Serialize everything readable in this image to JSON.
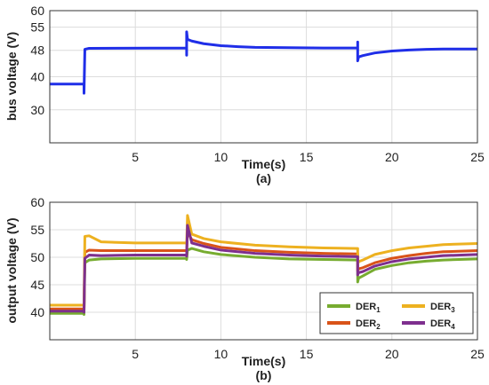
{
  "chart_data": [
    {
      "type": "line",
      "panel_label": "(a)",
      "xlabel": "Time(s)",
      "ylabel": "bus voltage (V)",
      "xlim": [
        0,
        25
      ],
      "ylim": [
        20,
        60
      ],
      "xticks": [
        5,
        10,
        15,
        20,
        25
      ],
      "yticks": [
        30,
        40,
        48,
        55,
        60
      ],
      "grid": true,
      "series": [
        {
          "color": "#1f2ee8",
          "x": [
            0,
            2.0,
            2.0,
            2.05,
            2.3,
            8.0,
            8.0,
            8.0,
            8.05,
            8.3,
            9,
            10,
            11,
            12,
            14,
            16,
            17,
            18.0,
            18.0,
            18.0,
            18.05,
            18.3,
            19,
            20,
            21,
            22,
            23,
            25
          ],
          "y": [
            37.8,
            37.8,
            35.0,
            48.3,
            48.6,
            48.7,
            46.5,
            53.6,
            51.3,
            50.8,
            50.0,
            49.4,
            49.1,
            48.9,
            48.8,
            48.7,
            48.7,
            48.7,
            50.5,
            44.8,
            46.0,
            46.4,
            47.2,
            47.8,
            48.1,
            48.3,
            48.4,
            48.4
          ]
        }
      ]
    },
    {
      "type": "line",
      "panel_label": "(b)",
      "xlabel": "Time(s)",
      "ylabel": "output voltage (V)",
      "xlim": [
        0,
        25
      ],
      "ylim": [
        35,
        60
      ],
      "xticks": [
        5,
        10,
        15,
        20,
        25
      ],
      "yticks": [
        40,
        45,
        50,
        55,
        60
      ],
      "grid": true,
      "legend": "bottom-right",
      "series": [
        {
          "name": "DER",
          "subscript": "1",
          "color": "#77ac30",
          "x": [
            0,
            2.0,
            2.0,
            2.05,
            2.3,
            3,
            5,
            8.0,
            8.0,
            8.05,
            8.3,
            9,
            10,
            12,
            14,
            16,
            18.0,
            18.0,
            18.05,
            18.3,
            19,
            20,
            21,
            22,
            23,
            25
          ],
          "y": [
            39.8,
            39.8,
            39.6,
            49.0,
            49.5,
            49.7,
            49.8,
            49.8,
            49.6,
            51.3,
            51.6,
            51.0,
            50.5,
            50.0,
            49.7,
            49.6,
            49.5,
            45.5,
            46.2,
            46.6,
            47.8,
            48.5,
            49.0,
            49.3,
            49.5,
            49.7
          ]
        },
        {
          "name": "DER",
          "subscript": "2",
          "color": "#d95319",
          "x": [
            0,
            2.0,
            2.0,
            2.05,
            2.3,
            3,
            5,
            8.0,
            8.0,
            8.05,
            8.3,
            9,
            10,
            12,
            14,
            16,
            18.0,
            18.0,
            18.05,
            18.3,
            19,
            20,
            21,
            22,
            23,
            25
          ],
          "y": [
            40.6,
            40.6,
            40.4,
            50.9,
            51.3,
            51.2,
            51.2,
            51.2,
            51.0,
            54.6,
            53.2,
            52.5,
            51.8,
            51.2,
            50.9,
            50.7,
            50.6,
            47.5,
            47.9,
            48.1,
            49.0,
            49.8,
            50.3,
            50.7,
            51.0,
            51.2
          ]
        },
        {
          "name": "DER",
          "subscript": "3",
          "color": "#edb120",
          "x": [
            0,
            2.0,
            2.0,
            2.05,
            2.3,
            3,
            5,
            8.0,
            8.0,
            8.05,
            8.3,
            9,
            10,
            12,
            14,
            16,
            18.0,
            18.0,
            18.05,
            18.3,
            19,
            20,
            21,
            22,
            23,
            25
          ],
          "y": [
            41.3,
            41.3,
            41.1,
            53.8,
            53.9,
            52.8,
            52.6,
            52.6,
            52.4,
            57.6,
            54.2,
            53.4,
            52.8,
            52.2,
            51.9,
            51.7,
            51.6,
            48.7,
            49.2,
            49.5,
            50.5,
            51.2,
            51.7,
            52.0,
            52.3,
            52.5
          ]
        },
        {
          "name": "DER",
          "subscript": "4",
          "color": "#7e2f8e",
          "x": [
            0,
            2.0,
            2.0,
            2.05,
            2.3,
            3,
            5,
            8.0,
            8.0,
            8.05,
            8.3,
            9,
            10,
            12,
            14,
            16,
            18.0,
            18.0,
            18.05,
            18.3,
            19,
            20,
            21,
            22,
            23,
            25
          ],
          "y": [
            40.2,
            40.2,
            40.0,
            49.8,
            50.4,
            50.3,
            50.4,
            50.4,
            50.2,
            55.8,
            52.6,
            52.0,
            51.3,
            50.7,
            50.4,
            50.2,
            50.1,
            46.8,
            47.2,
            47.4,
            48.4,
            49.2,
            49.7,
            50.0,
            50.3,
            50.5
          ]
        }
      ]
    }
  ]
}
